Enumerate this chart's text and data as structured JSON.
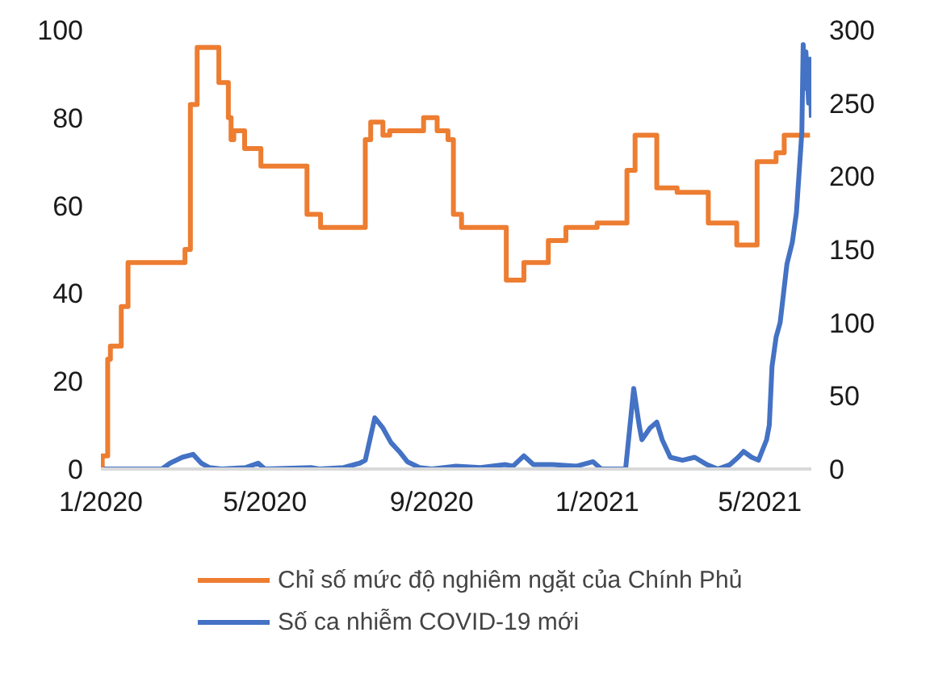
{
  "chart_data": {
    "type": "line",
    "xlim": [
      "2020-01-01",
      "2021-06-08"
    ],
    "xticks": [
      {
        "value": "2020-01-01",
        "label": "1/2020"
      },
      {
        "value": "2020-05-01",
        "label": "5/2020"
      },
      {
        "value": "2020-09-01",
        "label": "9/2020"
      },
      {
        "value": "2021-01-01",
        "label": "1/2021"
      },
      {
        "value": "2021-05-01",
        "label": "5/2021"
      }
    ],
    "ylim": [
      0,
      100
    ],
    "yticks": [
      0,
      20,
      40,
      60,
      80,
      100
    ],
    "y2lim": [
      0,
      300
    ],
    "y2ticks": [
      0,
      50,
      100,
      150,
      200,
      250,
      300
    ],
    "grid": false,
    "legend": "bottom",
    "series": [
      {
        "name": "Chỉ số mức độ nghiêm ngặt của Chính Phủ",
        "color": "#ed7d31",
        "type": "step",
        "x": [
          "2020-01-01",
          "2020-01-02",
          "2020-01-06",
          "2020-01-08",
          "2020-01-16",
          "2020-01-21",
          "2020-03-03",
          "2020-03-07",
          "2020-03-12",
          "2020-03-28",
          "2020-04-04",
          "2020-04-06",
          "2020-04-08",
          "2020-04-16",
          "2020-04-28",
          "2020-06-01",
          "2020-06-11",
          "2020-07-14",
          "2020-07-18",
          "2020-07-27",
          "2020-08-01",
          "2020-08-26",
          "2020-09-05",
          "2020-09-13",
          "2020-09-17",
          "2020-09-23",
          "2020-10-26",
          "2020-11-08",
          "2020-11-26",
          "2020-12-09",
          "2021-01-01",
          "2021-01-23",
          "2021-01-29",
          "2021-02-14",
          "2021-03-01",
          "2021-03-24",
          "2021-04-14",
          "2021-04-29",
          "2021-05-13",
          "2021-05-19",
          "2021-06-07"
        ],
        "values": [
          0,
          3,
          25,
          28,
          37,
          47,
          50,
          83,
          96,
          88,
          80,
          75,
          77,
          73,
          69,
          58,
          55,
          75,
          79,
          76,
          77,
          80,
          77,
          75,
          58,
          55,
          43,
          47,
          52,
          55,
          56,
          68,
          76,
          64,
          63,
          56,
          51,
          70,
          72,
          76,
          76
        ]
      },
      {
        "name": "Số ca nhiễm COVID-19 mới",
        "color": "#4472c4",
        "type": "line",
        "axis": "y2",
        "x": [
          "2020-01-03",
          "2020-02-15",
          "2020-02-21",
          "2020-03-01",
          "2020-03-09",
          "2020-03-15",
          "2020-03-21",
          "2020-03-30",
          "2020-04-17",
          "2020-04-26",
          "2020-05-01",
          "2020-06-04",
          "2020-06-10",
          "2020-06-28",
          "2020-07-10",
          "2020-07-14",
          "2020-07-21",
          "2020-07-27",
          "2020-08-02",
          "2020-08-08",
          "2020-08-14",
          "2020-08-23",
          "2020-09-01",
          "2020-09-19",
          "2020-10-07",
          "2020-10-25",
          "2020-10-31",
          "2020-11-08",
          "2020-11-15",
          "2020-11-29",
          "2020-12-17",
          "2020-12-29",
          "2021-01-04",
          "2021-01-22",
          "2021-01-28",
          "2021-02-01",
          "2021-02-03",
          "2021-02-09",
          "2021-02-14",
          "2021-02-18",
          "2021-02-24",
          "2021-03-05",
          "2021-03-14",
          "2021-03-23",
          "2021-03-31",
          "2021-04-09",
          "2021-04-15",
          "2021-04-19",
          "2021-04-25",
          "2021-04-30",
          "2021-05-06",
          "2021-05-08",
          "2021-05-10",
          "2021-05-13",
          "2021-05-16",
          "2021-05-21",
          "2021-05-25",
          "2021-05-28",
          "2021-06-01",
          "2021-06-02",
          "2021-06-03",
          "2021-06-04",
          "2021-06-06",
          "2021-06-07",
          "2021-06-08"
        ],
        "values": [
          0,
          0,
          4,
          8,
          10,
          4,
          1,
          0,
          1,
          4,
          0,
          1,
          0,
          1,
          4,
          6,
          35,
          28,
          18,
          12,
          5,
          1,
          0,
          2,
          1,
          3,
          2,
          9,
          3,
          3,
          2,
          5,
          0,
          0,
          55,
          30,
          20,
          28,
          32,
          20,
          8,
          6,
          8,
          3,
          0,
          3,
          8,
          12,
          8,
          6,
          20,
          30,
          70,
          90,
          100,
          140,
          155,
          175,
          230,
          290,
          260,
          285,
          250,
          280,
          240
        ]
      }
    ]
  }
}
